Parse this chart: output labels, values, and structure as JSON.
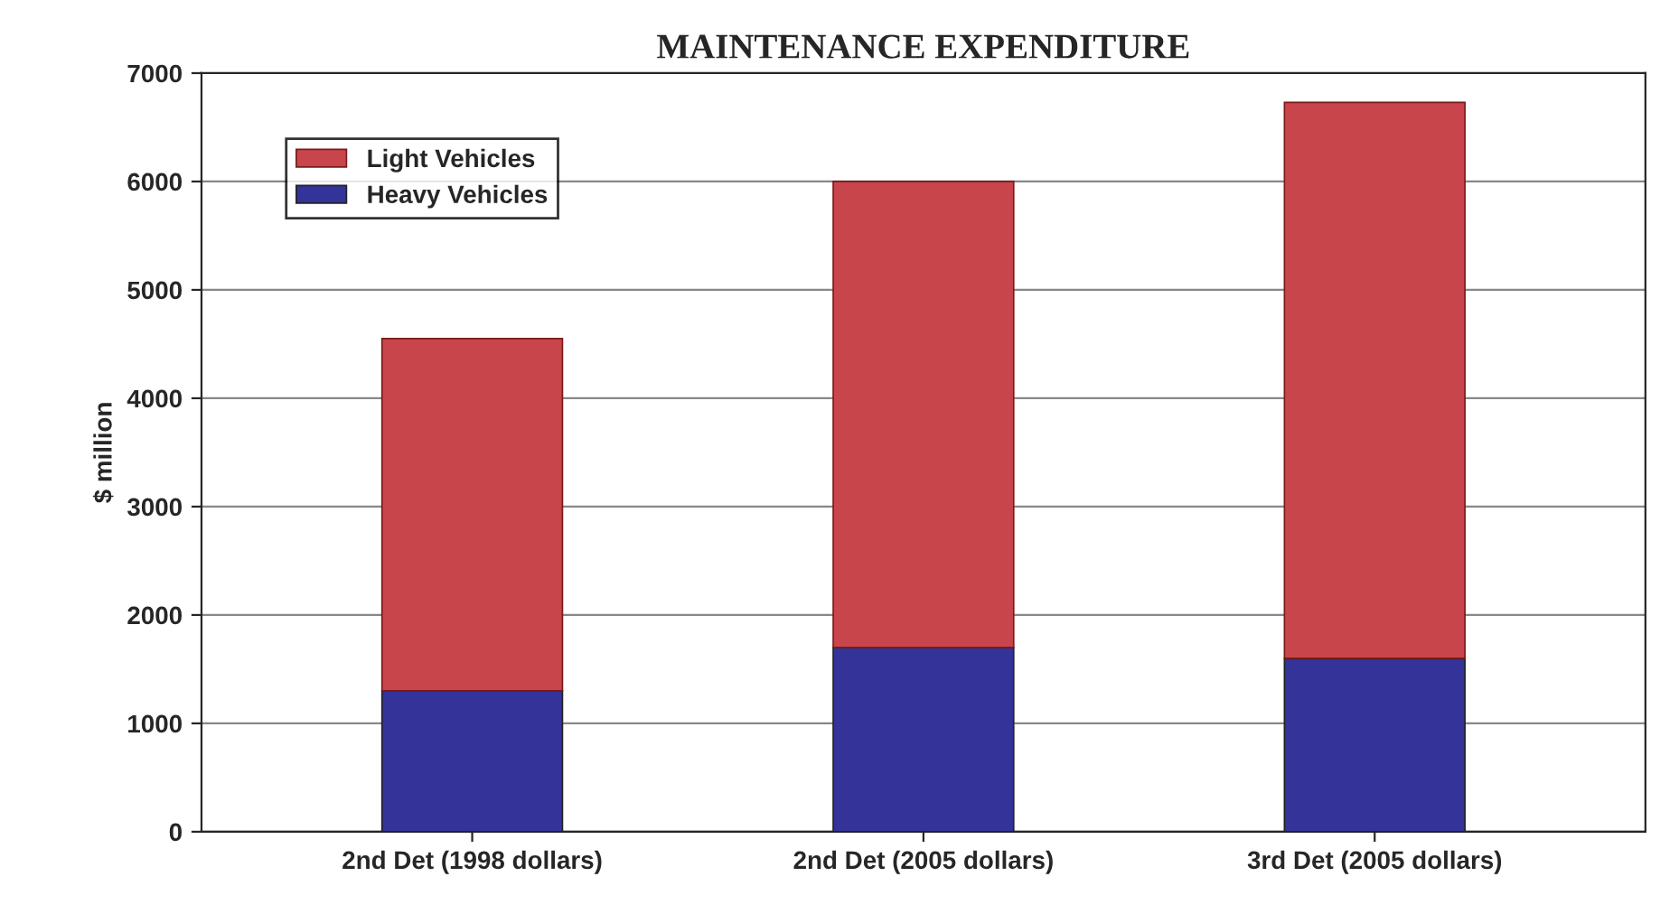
{
  "chart_data": {
    "type": "bar",
    "title": "MAINTENANCE EXPENDITURE",
    "ylabel": "$ million",
    "categories": [
      "2nd Det (1998 dollars)",
      "2nd Det (2005 dollars)",
      "3rd Det (2005 dollars)"
    ],
    "series": [
      {
        "name": "Heavy Vehicles",
        "color": "#333399",
        "values": [
          1300,
          1700,
          1600
        ]
      },
      {
        "name": "Light Vehicles",
        "color": "#c8464b",
        "values": [
          3250,
          4300,
          5130
        ]
      }
    ],
    "stacked": true,
    "ylim": [
      0,
      7000
    ],
    "yticks": [
      0,
      1000,
      2000,
      3000,
      4000,
      5000,
      6000,
      7000
    ],
    "grid": "y",
    "legend": "top left"
  }
}
